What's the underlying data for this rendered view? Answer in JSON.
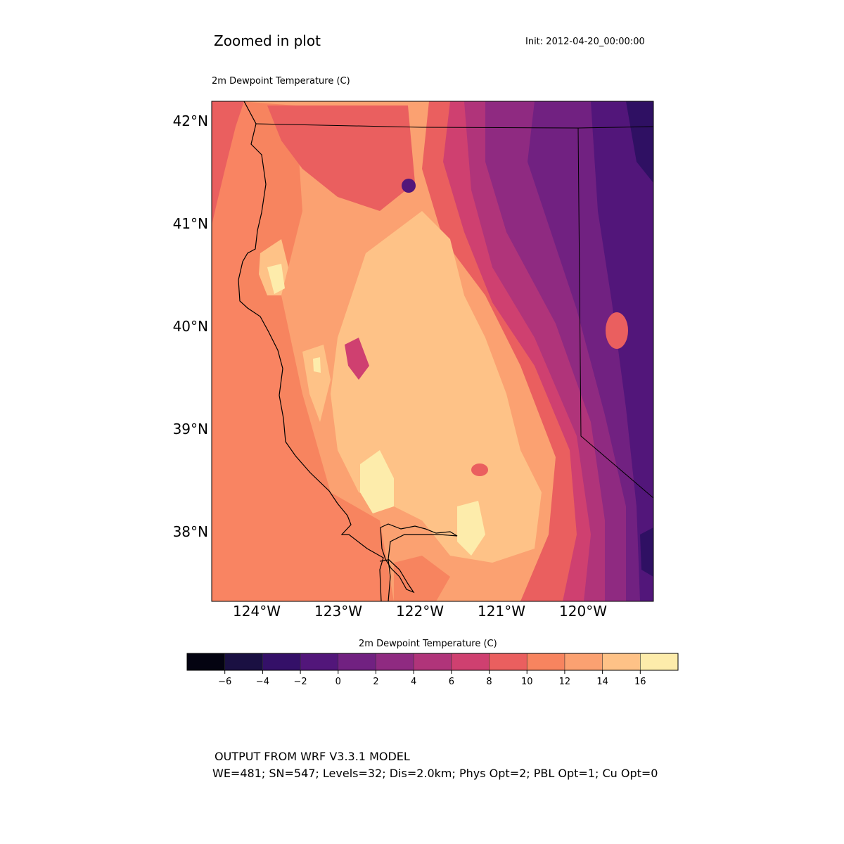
{
  "header": {
    "title": "Zoomed in plot",
    "init": "Init: 2012-04-20_00:00:00",
    "field_title": "2m Dewpoint Temperature (C)"
  },
  "map": {
    "lat_labels": [
      "42°N",
      "41°N",
      "40°N",
      "39°N",
      "38°N"
    ],
    "lon_labels": [
      "124°W",
      "123°W",
      "122°W",
      "121°W",
      "120°W"
    ],
    "ocean_color": "#f98462",
    "land_colors": {
      "warmest": "#fdecab",
      "very_warm": "#fec287",
      "warm": "#fba171",
      "mild": "#f7845f",
      "cool": "#ea5f5f",
      "cold": "#cf4070",
      "colder": "#b0347a",
      "very_cold": "#8f2a81",
      "frigid": "#712181",
      "extreme": "#52167a",
      "darkest": "#2f1063"
    }
  },
  "colorbar": {
    "title": "2m Dewpoint Temperature (C)",
    "colors": [
      "#040311",
      "#1a1042",
      "#341068",
      "#52167a",
      "#712181",
      "#8f2a81",
      "#b0347a",
      "#cf4070",
      "#ea5f5f",
      "#f7845f",
      "#fba171",
      "#fec287",
      "#fdecab"
    ],
    "ticks": [
      "−6",
      "−4",
      "−2",
      "0",
      "2",
      "4",
      "6",
      "8",
      "10",
      "12",
      "14",
      "16"
    ]
  },
  "footer": {
    "line1": "OUTPUT FROM WRF V3.3.1 MODEL",
    "line2": "WE=481; SN=547; Levels=32; Dis=2.0km; Phys Opt=2; PBL Opt=1; Cu Opt=0"
  }
}
